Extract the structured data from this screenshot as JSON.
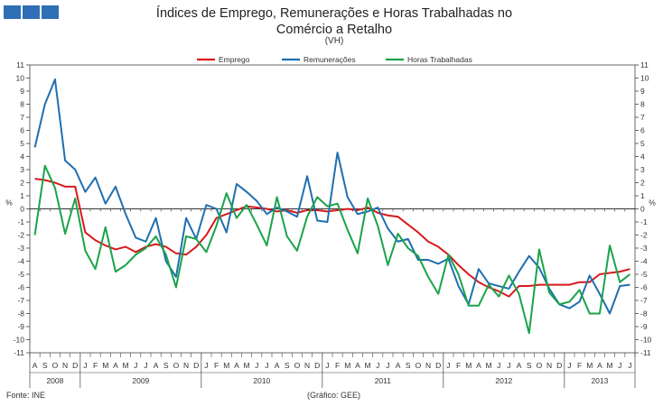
{
  "header": {
    "title": "Índices de Emprego, Remunerações e Horas Trabalhadas no Comércio a Retalho",
    "subtitle": "(VH)"
  },
  "footer": {
    "source": "Fonte: INE",
    "credit": "(Gráfico: GEE)"
  },
  "colors": {
    "brand": "#2f6fb5",
    "emprego": "#d7191c",
    "remuneracoes": "#1f6fb0",
    "horas": "#1aa34a"
  },
  "chart_data": {
    "type": "line",
    "title": "Índices de Emprego, Remunerações e Horas Trabalhadas no Comércio a Retalho",
    "subtitle": "(VH)",
    "ylabel_left": "%",
    "ylabel_right": "%",
    "ylim": [
      -11,
      11
    ],
    "yticks": [
      -11,
      -10,
      -9,
      -8,
      -7,
      -6,
      -5,
      -4,
      -3,
      -2,
      -1,
      0,
      1,
      2,
      3,
      4,
      5,
      6,
      7,
      8,
      9,
      10,
      11
    ],
    "grid": false,
    "legend_position": "top",
    "months": [
      "A",
      "S",
      "O",
      "N",
      "D",
      "J",
      "F",
      "M",
      "A",
      "M",
      "J",
      "J",
      "A",
      "S",
      "O",
      "N",
      "D",
      "J",
      "F",
      "M",
      "A",
      "M",
      "J",
      "J",
      "A",
      "S",
      "O",
      "N",
      "D",
      "J",
      "F",
      "M",
      "A",
      "M",
      "J",
      "J",
      "A",
      "S",
      "O",
      "N",
      "D",
      "J",
      "F",
      "M",
      "A",
      "M",
      "J",
      "J",
      "A",
      "S",
      "O",
      "N",
      "D",
      "J",
      "F",
      "M",
      "A",
      "M",
      "J",
      "J"
    ],
    "years": [
      {
        "label": "2008",
        "start": 0,
        "count": 5
      },
      {
        "label": "2009",
        "start": 5,
        "count": 12
      },
      {
        "label": "2010",
        "start": 17,
        "count": 12
      },
      {
        "label": "2011",
        "start": 29,
        "count": 12
      },
      {
        "label": "2012",
        "start": 41,
        "count": 12
      },
      {
        "label": "2013",
        "start": 53,
        "count": 7
      }
    ],
    "series": [
      {
        "name": "Emprego",
        "color": "#d7191c",
        "values": [
          2.3,
          2.2,
          2.0,
          1.7,
          1.7,
          -1.8,
          -2.4,
          -2.8,
          -3.1,
          -2.9,
          -3.3,
          -2.9,
          -2.7,
          -2.9,
          -3.4,
          -3.5,
          -2.9,
          -2.0,
          -0.7,
          -0.4,
          -0.1,
          0.2,
          0.1,
          0.0,
          -0.2,
          -0.1,
          -0.3,
          -0.1,
          -0.1,
          -0.2,
          -0.1,
          0.0,
          -0.1,
          0.1,
          -0.3,
          -0.5,
          -0.6,
          -1.2,
          -1.8,
          -2.5,
          -2.9,
          -3.5,
          -4.3,
          -5.0,
          -5.6,
          -6.0,
          -6.3,
          -6.7,
          -5.9,
          -5.9,
          -5.8,
          -5.8,
          -5.8,
          -5.8,
          -5.6,
          -5.6,
          -5.0,
          -4.9,
          -4.8,
          -4.6
        ]
      },
      {
        "name": "Remunerações",
        "color": "#1f6fb0",
        "values": [
          4.7,
          8.0,
          9.9,
          3.7,
          3.0,
          1.3,
          2.4,
          0.4,
          1.7,
          -0.4,
          -2.2,
          -2.5,
          -0.7,
          -4.0,
          -5.2,
          -0.7,
          -2.3,
          0.3,
          0.0,
          -1.8,
          1.9,
          1.3,
          0.6,
          -0.4,
          0.1,
          -0.2,
          -0.6,
          2.5,
          -0.9,
          -1.0,
          4.3,
          0.9,
          -0.4,
          -0.2,
          0.1,
          -1.5,
          -2.5,
          -2.3,
          -3.9,
          -3.9,
          -4.2,
          -3.8,
          -5.9,
          -7.3,
          -4.6,
          -5.7,
          -5.9,
          -6.1,
          -4.8,
          -3.6,
          -4.5,
          -6.1,
          -7.3,
          -7.6,
          -7.1,
          -5.1,
          -6.5,
          -8.0,
          -5.9,
          -5.8
        ]
      },
      {
        "name": "Horas Trabalhadas",
        "color": "#1aa34a",
        "values": [
          -2.0,
          3.3,
          1.6,
          -1.9,
          0.8,
          -3.2,
          -4.6,
          -1.4,
          -4.8,
          -4.3,
          -3.5,
          -3.0,
          -2.1,
          -3.5,
          -6.0,
          -2.1,
          -2.3,
          -3.3,
          -1.3,
          1.2,
          -0.7,
          0.3,
          -1.2,
          -2.8,
          0.9,
          -2.1,
          -3.2,
          -0.6,
          0.9,
          0.2,
          0.4,
          -1.6,
          -3.4,
          0.8,
          -1.3,
          -4.3,
          -1.9,
          -3.0,
          -3.6,
          -5.2,
          -6.5,
          -3.5,
          -5.0,
          -7.4,
          -7.4,
          -5.8,
          -6.7,
          -5.1,
          -6.5,
          -9.5,
          -3.1,
          -6.4,
          -7.3,
          -7.1,
          -6.2,
          -8.0,
          -8.0,
          -2.8,
          -5.6,
          -5.0
        ]
      }
    ]
  }
}
